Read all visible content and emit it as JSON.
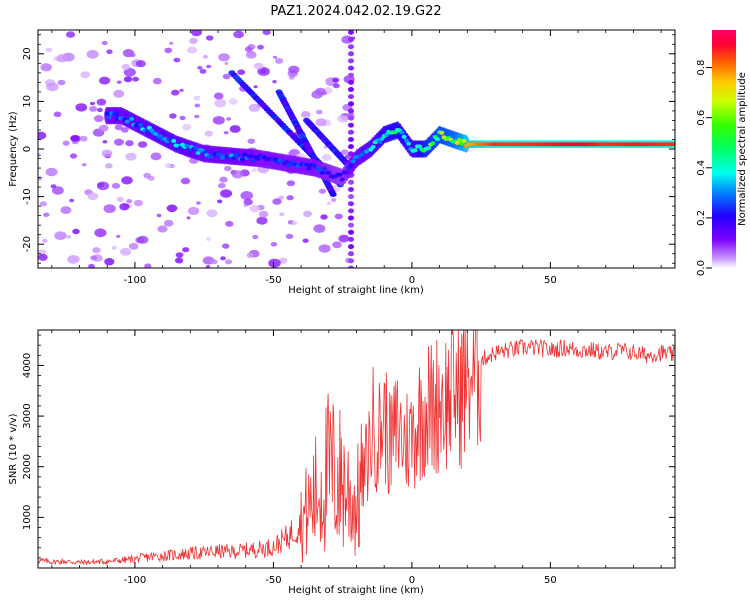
{
  "figure": {
    "title": "PAZ1.2024.042.02.19.G22"
  },
  "colors": {
    "snr_line": "#ee3333",
    "spectrum_band": "#6a00ff",
    "axis": "#000000"
  },
  "chart_data": [
    {
      "type": "heatmap",
      "title": "PAZ1.2024.042.02.19.G22",
      "xlabel": "Height of straight line (km)",
      "ylabel": "Frequency (Hz)",
      "xlim": [
        -135,
        95
      ],
      "ylim": [
        -25,
        25
      ],
      "x_ticks": [
        -100,
        -50,
        0,
        50
      ],
      "x_tick_labels": [
        "-100",
        "-50",
        "0",
        "50"
      ],
      "y_ticks": [
        -20,
        -10,
        0,
        10,
        20
      ],
      "y_tick_labels": [
        "-20",
        "-10",
        "0",
        "10",
        "20"
      ],
      "colormap": "gist_rainbow_r",
      "colorbar": {
        "label": "Normalized spectral amplitude",
        "range": [
          0,
          0.95
        ],
        "ticks": [
          0.0,
          0.2,
          0.4,
          0.6,
          0.8
        ],
        "tick_labels": [
          "0.0",
          "0.2",
          "0.4",
          "0.6",
          "0.8"
        ]
      },
      "ridge": {
        "description_points_x": [
          -105,
          -95,
          -85,
          -75,
          -65,
          -55,
          -45,
          -35,
          -25,
          -20,
          -15,
          -10,
          -5,
          0,
          5,
          10,
          15,
          20,
          30,
          40,
          50,
          60,
          70,
          80,
          95
        ],
        "frequency_y": [
          7,
          4,
          1,
          -1,
          -1.5,
          -2,
          -3,
          -4,
          -6,
          -2,
          0,
          3,
          4,
          0,
          0,
          3,
          2,
          1,
          1,
          1,
          1,
          1,
          1,
          1,
          1
        ],
        "amplitude": [
          0.3,
          0.35,
          0.35,
          0.3,
          0.3,
          0.25,
          0.25,
          0.25,
          0.2,
          0.3,
          0.35,
          0.45,
          0.5,
          0.4,
          0.55,
          0.6,
          0.65,
          0.8,
          0.9,
          0.9,
          0.92,
          0.95,
          0.9,
          0.92,
          0.9
        ]
      }
    },
    {
      "type": "line",
      "title": "",
      "xlabel": "Height of straight line (km)",
      "ylabel": "SNR (10 * v/v)",
      "xlim": [
        -135,
        95
      ],
      "ylim": [
        0,
        4700
      ],
      "x_ticks": [
        -100,
        -50,
        0,
        50
      ],
      "x_tick_labels": [
        "-100",
        "-50",
        "0",
        "50"
      ],
      "y_ticks": [
        1000,
        2000,
        3000,
        4000
      ],
      "y_tick_labels": [
        "1000",
        "2000",
        "3000",
        "4000"
      ],
      "series": [
        {
          "x": [
            -135,
            -130,
            -125,
            -120,
            -115,
            -110,
            -105,
            -100,
            -95,
            -90,
            -85,
            -80,
            -75,
            -70,
            -65,
            -60,
            -55,
            -50,
            -45,
            -40,
            -35,
            -30,
            -25,
            -20,
            -17,
            -14,
            -12,
            -10,
            -8,
            -5,
            -3,
            0,
            3,
            5,
            8,
            10,
            13,
            15,
            18,
            20,
            23,
            25,
            28,
            30,
            35,
            40,
            45,
            50,
            55,
            60,
            65,
            70,
            75,
            80,
            85,
            90,
            95
          ],
          "values": [
            150,
            120,
            130,
            110,
            120,
            130,
            150,
            180,
            220,
            240,
            260,
            290,
            300,
            330,
            320,
            350,
            380,
            420,
            600,
            900,
            1400,
            1900,
            1700,
            1200,
            1900,
            2800,
            2600,
            3000,
            2400,
            2800,
            2500,
            2600,
            3000,
            3200,
            3100,
            3400,
            3300,
            3600,
            3500,
            3800,
            3900,
            4100,
            4200,
            4250,
            4300,
            4350,
            4350,
            4300,
            4350,
            4300,
            4300,
            4250,
            4300,
            4250,
            4200,
            4250,
            4200
          ]
        }
      ]
    }
  ]
}
